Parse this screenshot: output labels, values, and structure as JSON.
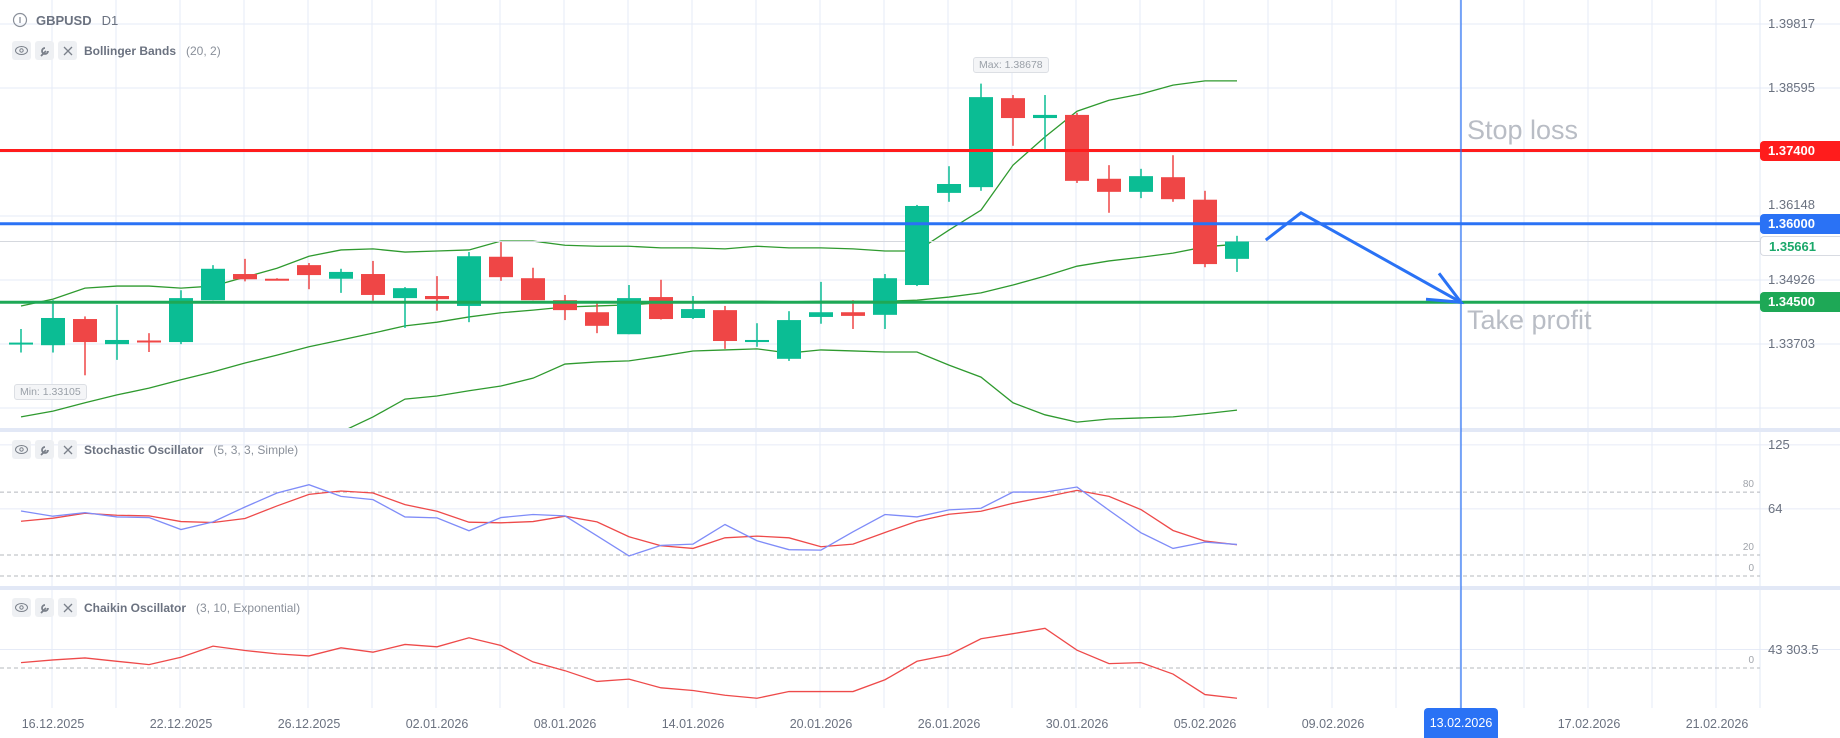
{
  "header": {
    "symbol": "GBPUSD",
    "timeframe": "D1"
  },
  "indicators": [
    {
      "name": "Bollinger Bands",
      "params": "(20, 2)"
    },
    {
      "name": "Stochastic Oscillator",
      "params": "(5, 3, 3, Simple)"
    },
    {
      "name": "Chaikin Oscillator",
      "params": "(3, 10, Exponential)"
    }
  ],
  "colors": {
    "up": "#0bbd94",
    "down": "#ef4646",
    "bb": "#2f9a2f",
    "stoch_k": "#7f8cf8",
    "stoch_d": "#ee4a4a",
    "chaikin": "#ee4a4a",
    "stop": "#ff1c1c",
    "entry": "#2a72f5",
    "target": "#1ea856"
  },
  "price_axis": {
    "ticks": [
      {
        "value": 1.39817,
        "label": "1.39817"
      },
      {
        "value": 1.38595,
        "label": "1.38595"
      },
      {
        "value": 1.36148,
        "label": "1.36148"
      },
      {
        "value": 1.34926,
        "label": "1.34926"
      },
      {
        "value": 1.33703,
        "label": "1.33703"
      }
    ],
    "grid_values": [
      1.39817,
      1.38595,
      1.37371,
      1.36148,
      1.34926,
      1.33703,
      1.32481
    ]
  },
  "levels": {
    "stop_loss": {
      "value": 1.374,
      "label": "1.37400",
      "text": "Stop loss"
    },
    "entry": {
      "value": 1.36,
      "label": "1.36000"
    },
    "take_profit": {
      "value": 1.345,
      "label": "1.34500",
      "text": "Take profit"
    },
    "current": {
      "value": 1.35661,
      "label": "1.35661"
    }
  },
  "max_label": "Max: 1.38678",
  "min_label": "Min: 1.33105",
  "stoch_axis": {
    "ticks": [
      {
        "value": 125,
        "label": "125"
      },
      {
        "value": 64,
        "label": "64"
      }
    ],
    "levels": [
      {
        "value": 80,
        "label": "80"
      },
      {
        "value": 20,
        "label": "20"
      },
      {
        "value": 0,
        "label": "0"
      }
    ]
  },
  "chaikin_axis": {
    "ticks": [
      {
        "value": 43303.5,
        "label": "43 303.5"
      }
    ],
    "levels": [
      {
        "value": 0,
        "label": "0"
      }
    ]
  },
  "dates": [
    "16.12.2025",
    "22.12.2025",
    "26.12.2025",
    "02.01.2026",
    "08.01.2026",
    "14.01.2026",
    "20.01.2026",
    "26.01.2026",
    "30.01.2026",
    "05.02.2026",
    "09.02.2026",
    "13.02.2026",
    "17.02.2026",
    "21.02.2026"
  ],
  "selected_date": "13.02.2026",
  "chart_data": {
    "type": "candlestick",
    "title": "GBPUSD D1",
    "ohlc": [
      [
        1.337,
        1.3399,
        1.3354,
        1.3373
      ],
      [
        1.3368,
        1.3454,
        1.3354,
        1.342
      ],
      [
        1.3418,
        1.3423,
        1.33105,
        1.3374
      ],
      [
        1.337,
        1.3445,
        1.334,
        1.3378
      ],
      [
        1.3377,
        1.3391,
        1.3355,
        1.3375
      ],
      [
        1.3374,
        1.3473,
        1.337,
        1.3458
      ],
      [
        1.3454,
        1.3521,
        1.3454,
        1.3514
      ],
      [
        1.3504,
        1.3533,
        1.349,
        1.3494
      ],
      [
        1.3495,
        1.3496,
        1.3493,
        1.3494
      ],
      [
        1.3521,
        1.3525,
        1.3475,
        1.3502
      ],
      [
        1.3495,
        1.3514,
        1.3468,
        1.3508
      ],
      [
        1.3504,
        1.3529,
        1.3453,
        1.3464
      ],
      [
        1.3458,
        1.3479,
        1.3401,
        1.3477
      ],
      [
        1.3462,
        1.35,
        1.3434,
        1.3456
      ],
      [
        1.3443,
        1.3546,
        1.3412,
        1.3538
      ],
      [
        1.3537,
        1.3565,
        1.3491,
        1.3498
      ],
      [
        1.3496,
        1.3516,
        1.3454,
        1.3454
      ],
      [
        1.3454,
        1.3464,
        1.3416,
        1.3435
      ],
      [
        1.3431,
        1.3449,
        1.3391,
        1.3405
      ],
      [
        1.3389,
        1.3483,
        1.3389,
        1.3458
      ],
      [
        1.346,
        1.3493,
        1.3417,
        1.3418
      ],
      [
        1.342,
        1.3462,
        1.3418,
        1.3437
      ],
      [
        1.3435,
        1.3443,
        1.3361,
        1.3376
      ],
      [
        1.3374,
        1.341,
        1.3365,
        1.3378
      ],
      [
        1.3342,
        1.3433,
        1.3338,
        1.3416
      ],
      [
        1.3422,
        1.3489,
        1.3409,
        1.3431
      ],
      [
        1.3431,
        1.3454,
        1.3399,
        1.3424
      ],
      [
        1.3426,
        1.3504,
        1.3399,
        1.3496
      ],
      [
        1.3483,
        1.3636,
        1.3481,
        1.3634
      ],
      [
        1.3659,
        1.371,
        1.3642,
        1.3676
      ],
      [
        1.367,
        1.38678,
        1.3663,
        1.3842
      ],
      [
        1.384,
        1.3846,
        1.3749,
        1.3802
      ],
      [
        1.3802,
        1.3846,
        1.3743,
        1.3808
      ],
      [
        1.3808,
        1.3812,
        1.3678,
        1.3682
      ],
      [
        1.3686,
        1.3712,
        1.3621,
        1.3661
      ],
      [
        1.3661,
        1.3705,
        1.3649,
        1.3691
      ],
      [
        1.3689,
        1.3731,
        1.3642,
        1.3647
      ],
      [
        1.3646,
        1.3663,
        1.3517,
        1.3523
      ],
      [
        1.3533,
        1.3577,
        1.3508,
        1.35661
      ]
    ],
    "bollinger": {
      "upper": [
        1.3443,
        1.3456,
        1.3477,
        1.3481,
        1.3481,
        1.3477,
        1.3481,
        1.3498,
        1.3515,
        1.3538,
        1.355,
        1.3552,
        1.3546,
        1.3548,
        1.355,
        1.3567,
        1.3567,
        1.3559,
        1.3557,
        1.3557,
        1.3554,
        1.3554,
        1.3552,
        1.3557,
        1.3554,
        1.3554,
        1.3552,
        1.3548,
        1.3548,
        1.3588,
        1.3626,
        1.3712,
        1.3766,
        1.3815,
        1.3836,
        1.3848,
        1.3865,
        1.3873,
        1.3873
      ],
      "middle": [
        1.3231,
        1.3242,
        1.3258,
        1.3273,
        1.3286,
        1.3302,
        1.3317,
        1.3334,
        1.3349,
        1.3365,
        1.3378,
        1.3391,
        1.3405,
        1.3412,
        1.3422,
        1.343,
        1.3435,
        1.3441,
        1.3443,
        1.3445,
        1.3449,
        1.3451,
        1.3452,
        1.3452,
        1.3451,
        1.3452,
        1.3452,
        1.3452,
        1.3454,
        1.346,
        1.3468,
        1.3483,
        1.35,
        1.3519,
        1.3529,
        1.3536,
        1.3544,
        1.3556,
        1.3561
      ],
      "lower": [
        1.3034,
        1.3053,
        1.3072,
        1.3082,
        1.3091,
        1.311,
        1.313,
        1.3145,
        1.3164,
        1.3183,
        1.3202,
        1.3231,
        1.3265,
        1.3271,
        1.3281,
        1.329,
        1.3305,
        1.3332,
        1.3336,
        1.3338,
        1.3347,
        1.3357,
        1.3359,
        1.3361,
        1.3353,
        1.3359,
        1.3357,
        1.3355,
        1.3355,
        1.333,
        1.3307,
        1.3258,
        1.3235,
        1.3221,
        1.3227,
        1.3229,
        1.3231,
        1.3237,
        1.3244
      ]
    },
    "stochastic": {
      "k": [
        62.0,
        57.0,
        60.4,
        56.3,
        55.7,
        44.3,
        51.6,
        65.8,
        79.1,
        87.0,
        75.9,
        72.8,
        56.3,
        55.4,
        43.1,
        55.7,
        58.6,
        57.3,
        38.3,
        19.1,
        29.2,
        30.4,
        49.1,
        33.6,
        25.1,
        24.7,
        42.1,
        58.6,
        56.3,
        63.0,
        64.6,
        80.0,
        80.0,
        84.8,
        62.7,
        41.2,
        26.3,
        32.3,
        30.1
      ],
      "d": [
        52.2,
        55.1,
        59.8,
        57.9,
        57.3,
        51.9,
        51.0,
        54.8,
        66.8,
        77.8,
        81.0,
        79.1,
        68.0,
        61.7,
        51.3,
        50.7,
        51.9,
        57.0,
        51.6,
        37.4,
        28.8,
        26.3,
        36.4,
        38.0,
        36.4,
        27.9,
        30.4,
        41.5,
        52.2,
        58.9,
        61.7,
        69.3,
        75.3,
        81.6,
        75.9,
        63.3,
        43.4,
        33.3,
        29.8
      ]
    },
    "chaikin": [
      12600,
      18900,
      23600,
      15700,
      7900,
      25200,
      51200,
      40900,
      33100,
      28300,
      47200,
      37000,
      55100,
      49600,
      70800,
      52700,
      14200,
      -6300,
      -31500,
      -26000,
      -46400,
      -52700,
      -63700,
      -70800,
      -55100,
      -55100,
      -55100,
      -27500,
      15700,
      30700,
      68500,
      80300,
      92900,
      41700,
      10200,
      12600,
      -14200,
      -62200,
      -70800
    ],
    "forecast_path": [
      {
        "bar": 38.9,
        "price": 1.3569
      },
      {
        "bar": 40.0,
        "price": 1.3621
      },
      {
        "bar": 45.0,
        "price": 1.345
      }
    ],
    "ylim": [
      1.325,
      1.401
    ]
  }
}
